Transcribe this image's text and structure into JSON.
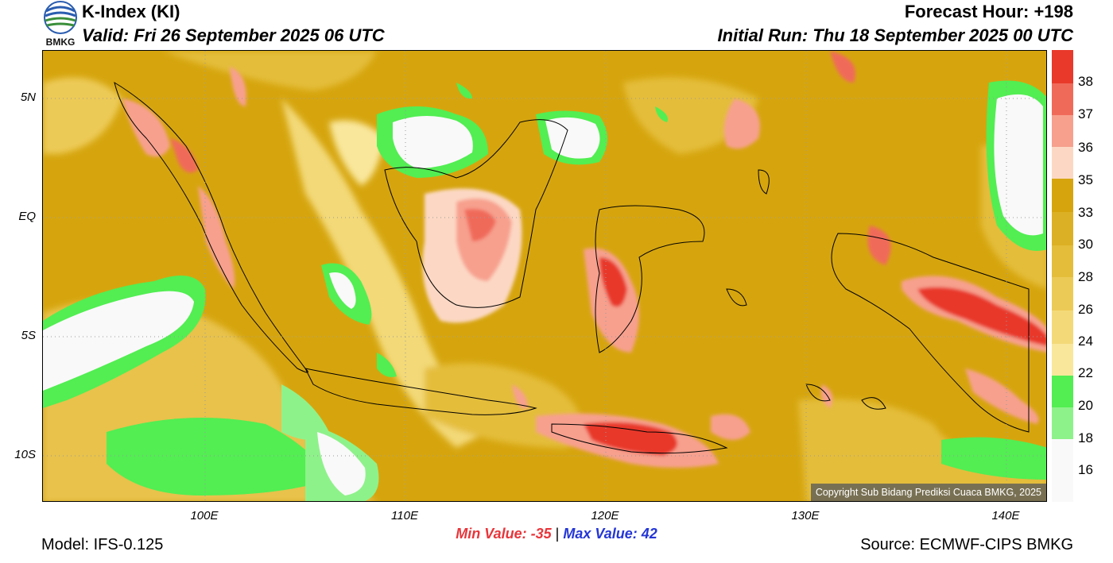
{
  "header": {
    "title": "K-Index (KI)",
    "valid": "Valid: Fri 26 September 2025 06 UTC",
    "forecast_hour": "Forecast Hour: +198",
    "initial_run": "Initial Run: Thu 18 September 2025 00 UTC",
    "logo_text": "BMKG"
  },
  "map": {
    "lat_labels": [
      "5N",
      "EQ",
      "5S",
      "10S"
    ],
    "lon_labels": [
      "100E",
      "110E",
      "120E",
      "130E",
      "140E"
    ],
    "copyright": "Copyright Sub Bidang Prediksi Cuaca BMKG, 2025"
  },
  "colorbar": {
    "labels": [
      "38",
      "37",
      "36",
      "35",
      "33",
      "30",
      "28",
      "26",
      "24",
      "22",
      "20",
      "18",
      "16"
    ],
    "colors": [
      "#e8392a",
      "#f06a5a",
      "#f7a08e",
      "#fcd8c4",
      "#d6a50e",
      "#dcb024",
      "#e4bd3a",
      "#ecca56",
      "#f3d978",
      "#f9e79c",
      "#52ee52",
      "#8ef28a",
      "#f9f9f9"
    ]
  },
  "footer": {
    "min_label": "Min Value: -35",
    "separator": "|",
    "max_label": "Max Value:  42",
    "model": "Model: IFS-0.125",
    "source": "Source: ECMWF-CIPS BMKG"
  }
}
